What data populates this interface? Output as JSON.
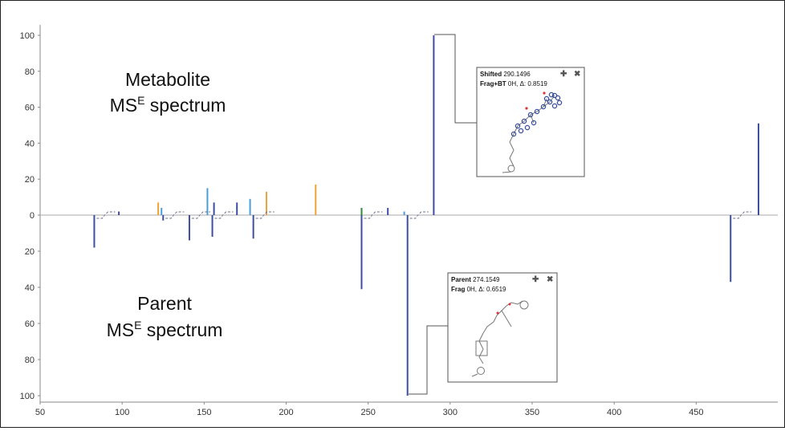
{
  "chart_data": {
    "type": "bar",
    "title": "",
    "xlabel": "",
    "ylabel": "",
    "xlim": [
      50,
      500
    ],
    "ylim": [
      -100,
      100
    ],
    "x_ticks": [
      50,
      100,
      150,
      200,
      250,
      300,
      350,
      400,
      450
    ],
    "y_ticks": [
      100,
      80,
      60,
      40,
      20,
      0,
      20,
      40,
      60,
      80,
      100
    ],
    "grid": false,
    "colors": {
      "dark_blue": "#3c4f9e",
      "light_blue": "#4a9fd8",
      "orange": "#f0a23a",
      "green": "#2e8b3a"
    },
    "labels": {
      "metabolite_line1": "Metabolite",
      "metabolite_ms": "MS",
      "metabolite_sup": "E",
      "metabolite_rest": " spectrum",
      "parent_line1": "Parent",
      "parent_ms": "MS",
      "parent_sup": "E",
      "parent_rest": " spectrum"
    },
    "series": [
      {
        "name": "Metabolite",
        "direction": "up",
        "peaks": [
          {
            "x": 98,
            "y": 2,
            "color": "dark_blue"
          },
          {
            "x": 122,
            "y": 7,
            "color": "orange"
          },
          {
            "x": 124,
            "y": 4,
            "color": "light_blue"
          },
          {
            "x": 152,
            "y": 15,
            "color": "light_blue"
          },
          {
            "x": 156,
            "y": 7,
            "color": "dark_blue"
          },
          {
            "x": 170,
            "y": 7,
            "color": "dark_blue"
          },
          {
            "x": 178,
            "y": 9,
            "color": "light_blue"
          },
          {
            "x": 188,
            "y": 13,
            "color": "orange"
          },
          {
            "x": 218,
            "y": 17,
            "color": "orange"
          },
          {
            "x": 246,
            "y": 4,
            "color": "green"
          },
          {
            "x": 262,
            "y": 4,
            "color": "dark_blue"
          },
          {
            "x": 272,
            "y": 2,
            "color": "light_blue"
          },
          {
            "x": 290,
            "y": 100,
            "color": "dark_blue"
          },
          {
            "x": 488,
            "y": 51,
            "color": "dark_blue"
          }
        ]
      },
      {
        "name": "Parent",
        "direction": "down",
        "peaks": [
          {
            "x": 83,
            "y": 18,
            "color": "dark_blue"
          },
          {
            "x": 125,
            "y": 3,
            "color": "dark_blue"
          },
          {
            "x": 141,
            "y": 14,
            "color": "dark_blue"
          },
          {
            "x": 155,
            "y": 12,
            "color": "dark_blue"
          },
          {
            "x": 180,
            "y": 13,
            "color": "dark_blue"
          },
          {
            "x": 246,
            "y": 41,
            "color": "dark_blue"
          },
          {
            "x": 274,
            "y": 100,
            "color": "dark_blue"
          },
          {
            "x": 471,
            "y": 37,
            "color": "dark_blue"
          }
        ]
      }
    ],
    "annotations": [
      {
        "title": "Shifted",
        "mz": "290.1496",
        "frag_label": "Frag+BT",
        "frag_value": "0H, Δ: 0.8519",
        "plus": "✚",
        "close": "✖"
      },
      {
        "title": "Parent",
        "mz": "274.1549",
        "frag_label": "Frag",
        "frag_value": "0H, Δ: 0.6519",
        "plus": "✚",
        "close": "✖"
      }
    ]
  }
}
